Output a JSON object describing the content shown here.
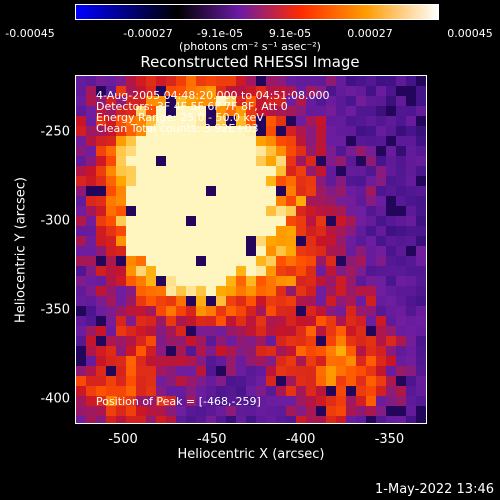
{
  "colorbar": {
    "ticks": [
      "-0.00045",
      "-0.00027",
      "-9.1e-05",
      "9.1e-05",
      "0.00027",
      "0.00045"
    ],
    "units": "(photons cm⁻² s⁻¹ asec⁻²)",
    "colors": [
      "#0000ff",
      "#000000",
      "#6a1aa6",
      "#ff2a00",
      "#ff9c00",
      "#ffffff"
    ]
  },
  "image": {
    "title": "Reconstructed RHESSI Image",
    "annotations": [
      "4-Aug-2005 04:48:20.000 to 04:51:08.000",
      "Detectors: 3F 4F 5F 6F 7F 8F, Att 0",
      "Energy Range: 25.0 - 50.0 keV",
      "Clean     Total counts: 3.92E+03"
    ],
    "peak_label": "Position of Peak = [-468,-259]",
    "xlabel": "Heliocentric X (arcsec)",
    "ylabel": "Heliocentric Y (arcsec)",
    "x_ticks": [
      "-500",
      "-450",
      "-400",
      "-350"
    ],
    "y_ticks": [
      "-250",
      "-300",
      "-350",
      "-400"
    ],
    "x_tick_values": [
      -500,
      -450,
      -400,
      -350
    ],
    "y_tick_values": [
      -250,
      -300,
      -350,
      -400
    ],
    "xlim": [
      -527,
      -330
    ],
    "ylim": [
      -413,
      -218
    ],
    "bright_regions": [
      {
        "x": -468,
        "y": -259
      },
      {
        "x": -440,
        "y": -300
      },
      {
        "x": -470,
        "y": -305
      },
      {
        "x": -380,
        "y": -380
      },
      {
        "x": -505,
        "y": -390
      }
    ]
  },
  "footer": {
    "timestamp": "1-May-2022 13:46"
  }
}
